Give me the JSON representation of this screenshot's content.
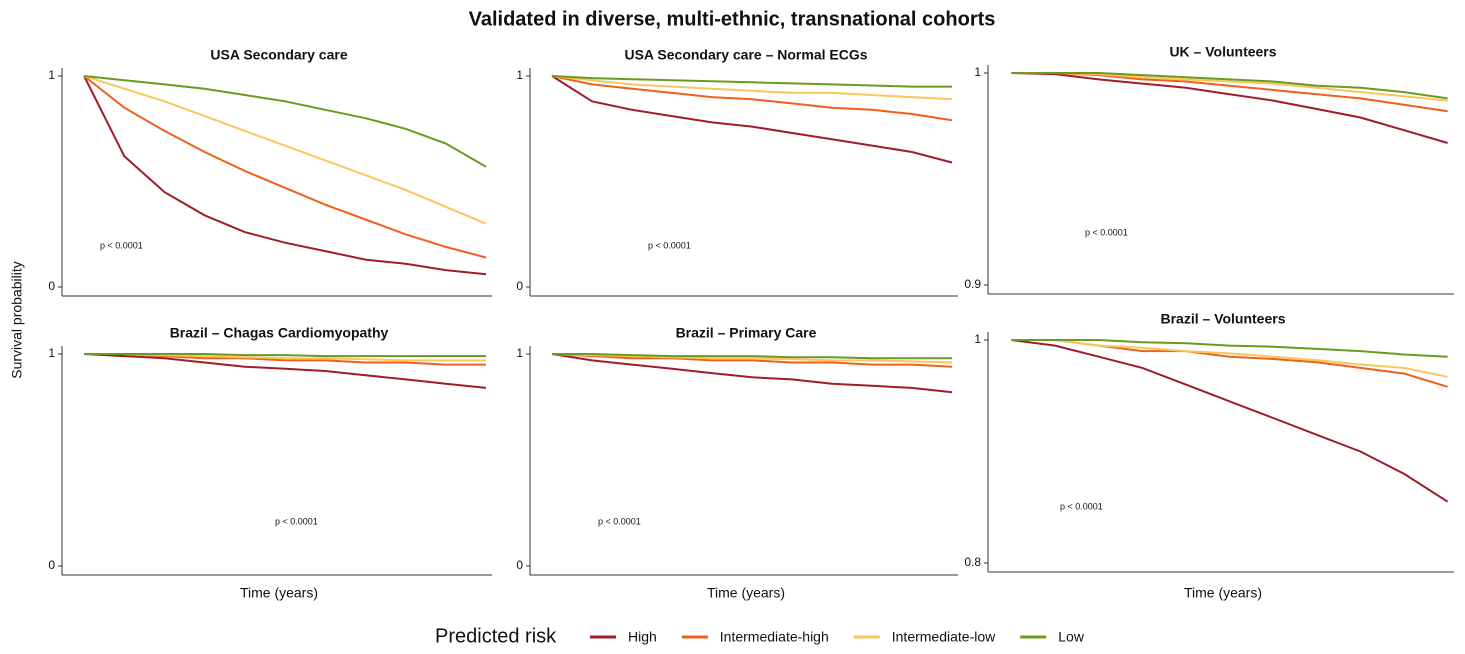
{
  "title": "Validated in diverse, multi-ethnic, transnational cohorts",
  "y_label": "Survival probability",
  "legend_title": "Predicted risk",
  "chart_data": [
    {
      "type": "line",
      "title": "USA Secondary care",
      "annotation": "p < 0.0001",
      "x": [
        0,
        1,
        2,
        3,
        4,
        5,
        6,
        7,
        8,
        9,
        10
      ],
      "xlim": [
        -0.4,
        10.1
      ],
      "ylim": [
        0,
        1
      ],
      "yticks": [
        0,
        1
      ],
      "series": [
        {
          "name": "High",
          "color": "#a01c2c",
          "values": [
            1,
            0.62,
            0.45,
            0.34,
            0.26,
            0.21,
            0.17,
            0.13,
            0.11,
            0.08,
            0.06
          ]
        },
        {
          "name": "Intermediate-high",
          "color": "#f0601a",
          "values": [
            1,
            0.85,
            0.74,
            0.64,
            0.55,
            0.47,
            0.39,
            0.32,
            0.25,
            0.19,
            0.14
          ]
        },
        {
          "name": "Intermediate-low",
          "color": "#f9c65c",
          "values": [
            1,
            0.94,
            0.88,
            0.81,
            0.74,
            0.67,
            0.6,
            0.53,
            0.46,
            0.38,
            0.3
          ]
        },
        {
          "name": "Low",
          "color": "#6a9a1e",
          "values": [
            1,
            0.98,
            0.96,
            0.94,
            0.91,
            0.88,
            0.84,
            0.8,
            0.75,
            0.68,
            0.57
          ]
        }
      ]
    },
    {
      "type": "line",
      "title": "USA Secondary care – Normal ECGs",
      "annotation": "p < 0.0001",
      "x": [
        0,
        1,
        2,
        3,
        4,
        5,
        6,
        7,
        8,
        9,
        10
      ],
      "xlim": [
        -0.4,
        10.1
      ],
      "ylim": [
        0,
        1
      ],
      "yticks": [
        0,
        1
      ],
      "series": [
        {
          "name": "High",
          "color": "#a01c2c",
          "values": [
            1,
            0.88,
            0.84,
            0.81,
            0.78,
            0.76,
            0.73,
            0.7,
            0.67,
            0.64,
            0.59
          ]
        },
        {
          "name": "Intermediate-high",
          "color": "#f0601a",
          "values": [
            1,
            0.96,
            0.94,
            0.92,
            0.9,
            0.89,
            0.87,
            0.85,
            0.84,
            0.82,
            0.79
          ]
        },
        {
          "name": "Intermediate-low",
          "color": "#f9c65c",
          "values": [
            1,
            0.98,
            0.96,
            0.95,
            0.94,
            0.93,
            0.92,
            0.92,
            0.91,
            0.9,
            0.89
          ]
        },
        {
          "name": "Low",
          "color": "#6a9a1e",
          "values": [
            1,
            0.99,
            0.985,
            0.98,
            0.975,
            0.97,
            0.965,
            0.96,
            0.955,
            0.95,
            0.95
          ]
        }
      ]
    },
    {
      "type": "line",
      "title": "UK – Volunteers",
      "annotation": "p < 0.0001",
      "x": [
        0,
        1,
        2,
        3,
        4,
        5,
        6,
        7,
        8,
        9,
        10
      ],
      "xlim": [
        -0.4,
        10.1
      ],
      "ylim": [
        0.9,
        1
      ],
      "yticks": [
        0.9,
        1
      ],
      "series": [
        {
          "name": "High",
          "color": "#a01c2c",
          "values": [
            1,
            0.9995,
            0.997,
            0.995,
            0.993,
            0.99,
            0.987,
            0.983,
            0.979,
            0.973,
            0.967
          ]
        },
        {
          "name": "Intermediate-high",
          "color": "#f0601a",
          "values": [
            1,
            1,
            0.999,
            0.997,
            0.996,
            0.994,
            0.992,
            0.99,
            0.988,
            0.985,
            0.982
          ]
        },
        {
          "name": "Intermediate-low",
          "color": "#f9c65c",
          "values": [
            1,
            1,
            0.9995,
            0.998,
            0.997,
            0.996,
            0.995,
            0.993,
            0.991,
            0.989,
            0.987
          ]
        },
        {
          "name": "Low",
          "color": "#6a9a1e",
          "values": [
            1,
            1,
            1,
            0.999,
            0.998,
            0.997,
            0.996,
            0.994,
            0.993,
            0.991,
            0.988
          ]
        }
      ]
    },
    {
      "type": "line",
      "title": "Brazil – Chagas Cardiomyopathy",
      "annotation": "p < 0.0001",
      "x_label": "Time (years)",
      "x": [
        0,
        1,
        2,
        3,
        4,
        5,
        6,
        7,
        8,
        9,
        10
      ],
      "xlim": [
        -0.4,
        10.1
      ],
      "ylim": [
        0,
        1
      ],
      "yticks": [
        0,
        1
      ],
      "series": [
        {
          "name": "High",
          "color": "#a01c2c",
          "values": [
            1,
            0.99,
            0.98,
            0.96,
            0.94,
            0.93,
            0.92,
            0.9,
            0.88,
            0.86,
            0.84
          ]
        },
        {
          "name": "Intermediate-high",
          "color": "#f0601a",
          "values": [
            1,
            1,
            0.99,
            0.98,
            0.98,
            0.97,
            0.97,
            0.96,
            0.96,
            0.95,
            0.95
          ]
        },
        {
          "name": "Intermediate-low",
          "color": "#f9c65c",
          "values": [
            1,
            1,
            0.995,
            0.99,
            0.985,
            0.98,
            0.98,
            0.975,
            0.97,
            0.97,
            0.97
          ]
        },
        {
          "name": "Low",
          "color": "#6a9a1e",
          "values": [
            1,
            1,
            1,
            1,
            0.995,
            0.995,
            0.99,
            0.99,
            0.99,
            0.99,
            0.99
          ]
        }
      ]
    },
    {
      "type": "line",
      "title": "Brazil – Primary Care",
      "annotation": "p < 0.0001",
      "x_label": "Time (years)",
      "x": [
        0,
        1,
        2,
        3,
        4,
        5,
        6,
        7,
        8,
        9,
        10
      ],
      "xlim": [
        -0.4,
        10.1
      ],
      "ylim": [
        0,
        1
      ],
      "yticks": [
        0,
        1
      ],
      "series": [
        {
          "name": "High",
          "color": "#a01c2c",
          "values": [
            1,
            0.97,
            0.95,
            0.93,
            0.91,
            0.89,
            0.88,
            0.86,
            0.85,
            0.84,
            0.82
          ]
        },
        {
          "name": "Intermediate-high",
          "color": "#f0601a",
          "values": [
            1,
            0.99,
            0.98,
            0.98,
            0.97,
            0.97,
            0.96,
            0.96,
            0.95,
            0.95,
            0.94
          ]
        },
        {
          "name": "Intermediate-low",
          "color": "#f9c65c",
          "values": [
            1,
            0.995,
            0.99,
            0.985,
            0.98,
            0.98,
            0.975,
            0.97,
            0.97,
            0.965,
            0.96
          ]
        },
        {
          "name": "Low",
          "color": "#6a9a1e",
          "values": [
            1,
            1,
            0.995,
            0.99,
            0.99,
            0.99,
            0.985,
            0.985,
            0.98,
            0.98,
            0.98
          ]
        }
      ]
    },
    {
      "type": "line",
      "title": "Brazil – Volunteers",
      "annotation": "p < 0.0001",
      "x_label": "Time (years)",
      "x": [
        0,
        1,
        2,
        3,
        4,
        5,
        6,
        7,
        8,
        9,
        10
      ],
      "xlim": [
        -0.4,
        10.1
      ],
      "ylim": [
        0.8,
        1
      ],
      "yticks": [
        0.8,
        1
      ],
      "series": [
        {
          "name": "High",
          "color": "#a01c2c",
          "values": [
            1,
            0.995,
            0.985,
            0.975,
            0.96,
            0.945,
            0.93,
            0.915,
            0.9,
            0.88,
            0.855
          ]
        },
        {
          "name": "Intermediate-high",
          "color": "#f0601a",
          "values": [
            1,
            1,
            0.995,
            0.99,
            0.99,
            0.985,
            0.983,
            0.98,
            0.975,
            0.97,
            0.958
          ]
        },
        {
          "name": "Intermediate-low",
          "color": "#f9c65c",
          "values": [
            1,
            1,
            0.995,
            0.993,
            0.99,
            0.988,
            0.985,
            0.982,
            0.978,
            0.975,
            0.967
          ]
        },
        {
          "name": "Low",
          "color": "#6a9a1e",
          "values": [
            1,
            1,
            1,
            0.998,
            0.997,
            0.995,
            0.994,
            0.992,
            0.99,
            0.987,
            0.985
          ]
        }
      ]
    }
  ]
}
